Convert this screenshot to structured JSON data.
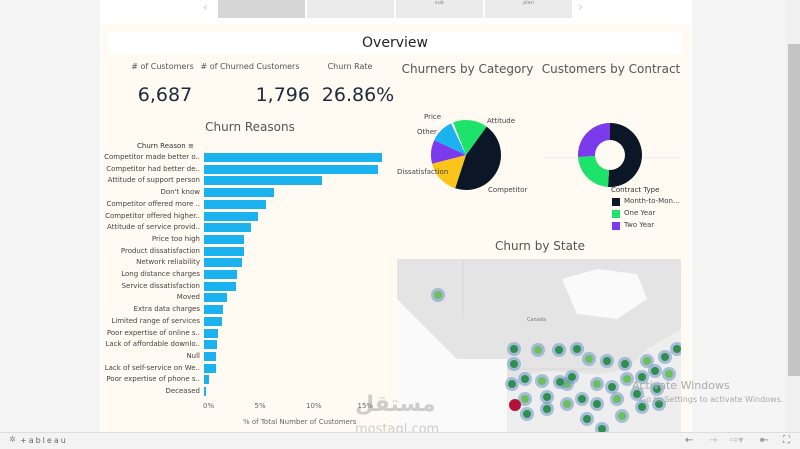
{
  "tabs": [
    "",
    "",
    "",
    "sub",
    "plan"
  ],
  "overview_title": "Overview",
  "kpis": [
    {
      "label": "# of Customers",
      "value": "6,687"
    },
    {
      "label": "# of Churned Customers",
      "value": "1,796"
    },
    {
      "label": "Churn Rate",
      "value": "26.86%"
    }
  ],
  "chart_data": [
    {
      "type": "bar",
      "title": "Churn Reasons",
      "ylabel": "Churn Reason",
      "xlabel": "% of Total Number of Customers",
      "xlim": [
        0,
        18
      ],
      "xticks": [
        "0%",
        "5%",
        "10%",
        "15%"
      ],
      "categories": [
        "Competitor made better o..",
        "Competitor had better de..",
        "Attitude of support person",
        "Don't know",
        "Competitor offered more ..",
        "Competitor offered higher..",
        "Attitude of service provid..",
        "Price too high",
        "Product dissatisfaction",
        "Network reliability",
        "Long distance charges",
        "Service dissatisfaction",
        "Moved",
        "Extra data charges",
        "Limited range of services",
        "Poor expertise of online s..",
        "Lack of affordable downlo..",
        "Null",
        "Lack of self-service on We..",
        "Poor expertise of phone s..",
        "Deceased"
      ],
      "values": [
        17.3,
        16.9,
        11.5,
        6.8,
        6.0,
        5.2,
        4.6,
        3.9,
        3.9,
        3.7,
        3.2,
        3.1,
        2.2,
        1.8,
        1.7,
        1.4,
        1.3,
        1.2,
        1.2,
        0.5,
        0.2
      ],
      "color": "#1ab3f0"
    },
    {
      "type": "pie",
      "title": "Churners by Category",
      "categories": [
        "Competitor",
        "Dissatisfaction",
        "Other",
        "Price",
        "",
        "Attitude"
      ],
      "values": [
        45,
        16,
        11,
        11,
        1,
        16
      ],
      "colors": [
        "#0b1626",
        "#fbc41a",
        "#7c3aed",
        "#1ab3f0",
        "#ffffff",
        "#1ee36b"
      ]
    },
    {
      "type": "pie",
      "donut": true,
      "title": "Customers by Contract",
      "legend_title": "Contract Type",
      "categories": [
        "Month-to-Mon...",
        "One Year",
        "Two Year"
      ],
      "values": [
        51,
        23,
        26
      ],
      "colors": [
        "#0b1626",
        "#1ee36b",
        "#7c3aed"
      ],
      "legend": "bottom"
    }
  ],
  "map": {
    "title": "Churn by State",
    "label": "Canada"
  },
  "watermark": {
    "line1": "Activate Windows",
    "line2": "Go to Settings to activate Windows."
  },
  "mostaql": {
    "arabic": "مستقل",
    "latin": "mostaql.com"
  },
  "toolbar": {
    "logo": "+ableau",
    "icons": [
      "back-icon",
      "forward-icon",
      "revert-icon",
      "reset-icon",
      "fullscreen-icon"
    ]
  }
}
